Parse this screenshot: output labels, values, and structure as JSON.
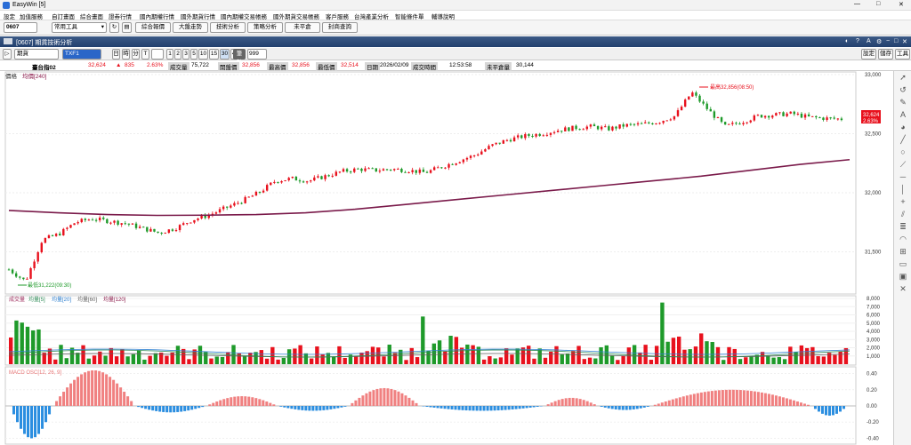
{
  "app": {
    "title": "EasyWin  [5]",
    "window_controls": [
      "—",
      "□",
      "✕"
    ]
  },
  "menu": [
    "設定",
    "加值服務",
    "自訂畫面",
    "綜合畫面",
    "證券行情",
    "國內期權行情",
    "國外期貨行情",
    "國內期權交易帳務",
    "國外期貨交易帳務",
    "客戶服務",
    "台灣產業分析",
    "智能條件單",
    "輔導說明"
  ],
  "toolbar": {
    "window_no": "0607",
    "tool_select": "常用工具",
    "buttons": [
      "綜合報價",
      "大盤走勢",
      "技術分析",
      "策略分析",
      "未平倉",
      "封商查詢"
    ]
  },
  "window": {
    "title": "[0607] 期貨技術分析",
    "ctrl_icons": [
      "◐",
      "?",
      "A",
      "⚙",
      "−",
      "□",
      "✕"
    ]
  },
  "controls": {
    "type_select": "期貨",
    "symbol": "TXF1",
    "periods": [
      "日",
      "時",
      "分",
      "T"
    ],
    "minutes": [
      "1",
      "2",
      "3",
      "5",
      "10",
      "15",
      "30",
      "45"
    ],
    "count_label": "筆數",
    "count_value": "999",
    "right_buttons": [
      "設定",
      "儲存",
      "工具"
    ]
  },
  "quote": {
    "name": "臺台指02",
    "price": "32,624",
    "arrow": "▲",
    "change": "835",
    "pct": "2.63%",
    "volume_label": "成交量",
    "volume": "75,722",
    "open_label": "開盤價",
    "open": "32,856",
    "high_label": "最高價",
    "high": "32,856",
    "low_label": "最低價",
    "low": "32,514",
    "date_label": "日期",
    "date": "2026/02/09",
    "time_label": "成交時間",
    "time": "12:53:58",
    "oi_label": "未平倉量",
    "oi": "30,144"
  },
  "panels": {
    "price": {
      "title": "價格",
      "legend": "均價[240]",
      "high_note": "最高32,856(08:50)",
      "low_note": "最低31,222(09:30)",
      "last_price": "32,624",
      "last_pct": "2.63%"
    },
    "volume": {
      "legend": [
        {
          "text": "成交量",
          "color": "#a03060"
        },
        {
          "text": "均量[5]",
          "color": "#2e8b57"
        },
        {
          "text": "均量[20]",
          "color": "#3080d0"
        },
        {
          "text": "均量[60]",
          "color": "#606060"
        },
        {
          "text": "均量[120]",
          "color": "#8b1a4a"
        }
      ]
    },
    "macd": {
      "legend": "MACD OSC[12, 26, 9]"
    }
  },
  "colors": {
    "up": "#e8111d",
    "down": "#1e9a2a",
    "avg": "#7a1a4a",
    "osc_pos": "#f08080",
    "osc_neg": "#2b8ee0"
  },
  "chart_data": [
    {
      "type": "candlestick",
      "title": "價格",
      "y_ticks": [
        "33,000",
        "32,500",
        "32,000",
        "31,500"
      ],
      "ylim": [
        31150,
        33000
      ],
      "close_path": [
        31350,
        31250,
        31600,
        31650,
        31750,
        31780,
        31760,
        31740,
        31700,
        31660,
        31700,
        31770,
        31810,
        31870,
        31930,
        32000,
        32100,
        32120,
        32100,
        32140,
        32180,
        32200,
        32190,
        32200,
        32190,
        32170,
        32220,
        32270,
        32320,
        32400,
        32450,
        32480,
        32500,
        32530,
        32550,
        32560,
        32540,
        32570,
        32580,
        32600,
        32650,
        32850,
        32700,
        32560,
        32600,
        32650,
        32660,
        32670,
        32640,
        32630,
        32624
      ],
      "avg_line": [
        31850,
        31830,
        31815,
        31808,
        31810,
        31815,
        31830,
        31860,
        31900,
        31940,
        31980,
        32020,
        32060,
        32100,
        32140,
        32190,
        32240,
        32280
      ],
      "annotations": [
        "最高32,856(08:50)",
        "最低31,222(09:30)"
      ]
    },
    {
      "type": "bar",
      "title": "成交量",
      "y_ticks": [
        "8,000",
        "7,000",
        "6,000",
        "5,000",
        "4,000",
        "3,000",
        "2,000",
        "1,000"
      ],
      "ylim": [
        0,
        8000
      ],
      "bars_per_session": 151,
      "spikes": [
        {
          "index": 74,
          "value": 5800
        },
        {
          "index": 117,
          "value": 7500
        }
      ]
    },
    {
      "type": "bar",
      "title": "MACD OSC[12, 26, 9]",
      "y_ticks": [
        "0.40",
        "0.20",
        "0.00",
        "-0.20",
        "-0.40"
      ],
      "ylim": [
        -0.45,
        0.45
      ]
    }
  ]
}
